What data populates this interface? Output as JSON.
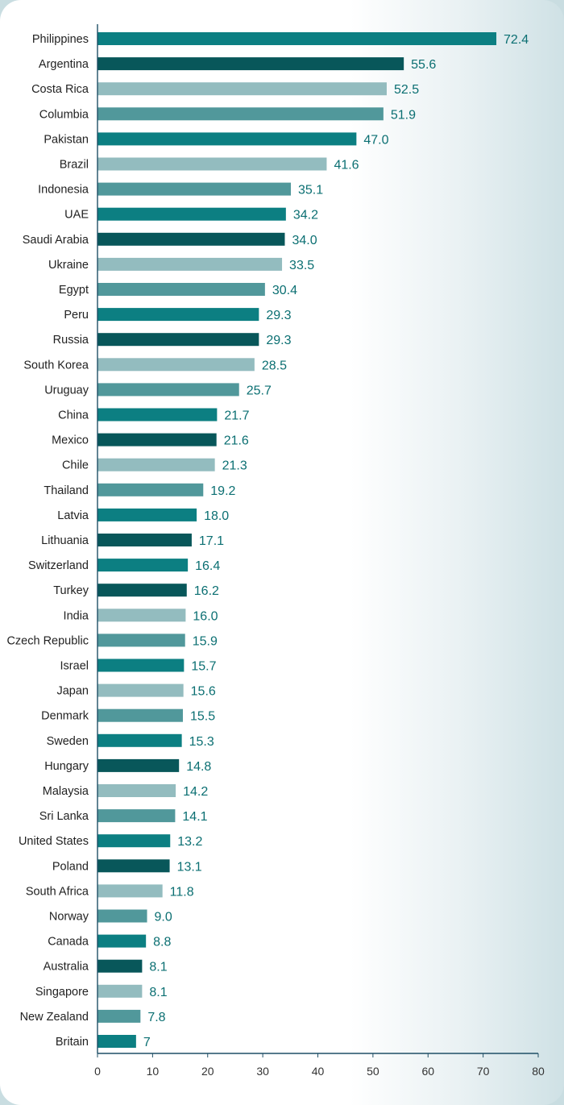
{
  "colors": {
    "palette": [
      "#0c7f82",
      "#08575a",
      "#93bcbf",
      "#51989b"
    ],
    "axis": "#1f4f66",
    "value_label": "#0b6f72"
  },
  "chart_data": {
    "type": "bar",
    "orientation": "horizontal",
    "title": "",
    "xlabel": "",
    "ylabel": "",
    "xlim": [
      0,
      80
    ],
    "xticks": [
      0,
      10,
      20,
      30,
      40,
      50,
      60,
      70,
      80
    ],
    "grid": false,
    "categories": [
      "Philippines",
      "Argentina",
      "Costa Rica",
      "Columbia",
      "Pakistan",
      "Brazil",
      "Indonesia",
      "UAE",
      "Saudi Arabia",
      "Ukraine",
      "Egypt",
      "Peru",
      "Russia",
      "South Korea",
      "Uruguay",
      "China",
      "Mexico",
      "Chile",
      "Thailand",
      "Latvia",
      "Lithuania",
      "Switzerland",
      "Turkey",
      "India",
      "Czech Republic",
      "Israel",
      "Japan",
      "Denmark",
      "Sweden",
      "Hungary",
      "Malaysia",
      "Sri Lanka",
      "United States",
      "Poland",
      "South Africa",
      "Norway",
      "Canada",
      "Australia",
      "Singapore",
      "New Zealand",
      "Britain"
    ],
    "values": [
      72.4,
      55.6,
      52.5,
      51.9,
      47.0,
      41.6,
      35.1,
      34.2,
      34.0,
      33.5,
      30.4,
      29.3,
      29.3,
      28.5,
      25.7,
      21.7,
      21.6,
      21.3,
      19.2,
      18.0,
      17.1,
      16.4,
      16.2,
      16.0,
      15.9,
      15.7,
      15.6,
      15.5,
      15.3,
      14.8,
      14.2,
      14.1,
      13.2,
      13.1,
      11.8,
      9.0,
      8.8,
      8.1,
      8.1,
      7.8,
      7
    ],
    "value_labels": [
      "72.4",
      "55.6",
      "52.5",
      "51.9",
      "47.0",
      "41.6",
      "35.1",
      "34.2",
      "34.0",
      "33.5",
      "30.4",
      "29.3",
      "29.3",
      "28.5",
      "25.7",
      "21.7",
      "21.6",
      "21.3",
      "19.2",
      "18.0",
      "17.1",
      "16.4",
      "16.2",
      "16.0",
      "15.9",
      "15.7",
      "15.6",
      "15.5",
      "15.3",
      "14.8",
      "14.2",
      "14.1",
      "13.2",
      "13.1",
      "11.8",
      "9.0",
      "8.8",
      "8.1",
      "8.1",
      "7.8",
      "7"
    ],
    "bar_color_index": [
      0,
      1,
      2,
      3,
      0,
      2,
      3,
      0,
      1,
      2,
      3,
      0,
      1,
      2,
      3,
      0,
      1,
      2,
      3,
      0,
      1,
      0,
      1,
      2,
      3,
      0,
      2,
      3,
      0,
      1,
      2,
      3,
      0,
      1,
      2,
      3,
      0,
      1,
      2,
      3,
      0
    ]
  }
}
